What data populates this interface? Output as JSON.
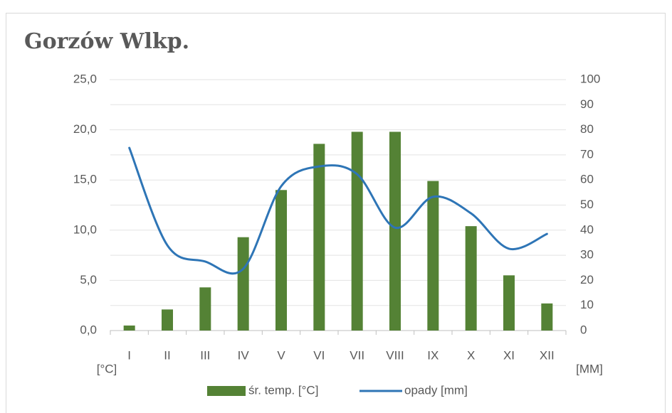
{
  "chart_data": {
    "type": "bar-line",
    "title": "Gorzów Wlkp.",
    "categories": [
      "I",
      "II",
      "III",
      "IV",
      "V",
      "VI",
      "VII",
      "VIII",
      "IX",
      "X",
      "XI",
      "XII"
    ],
    "series": [
      {
        "name": "śr. temp. [°C]",
        "color": "#548235",
        "type": "bar",
        "axis": "y",
        "values": [
          0.5,
          2.1,
          4.3,
          9.3,
          14.0,
          18.6,
          19.8,
          19.8,
          14.9,
          10.4,
          5.5,
          2.7
        ]
      },
      {
        "name": "opady [mm]",
        "color": "#2e75b6",
        "type": "line",
        "axis": "y2",
        "values": [
          72.8,
          34.0,
          27.5,
          24.6,
          57.5,
          65.4,
          62.3,
          41.0,
          53.3,
          46.7,
          32.6,
          38.5
        ]
      }
    ],
    "ylabel": "[°C]",
    "y2label": "[MM]",
    "ylim": [
      0,
      25
    ],
    "yticks": [
      {
        "value": 0,
        "label": "0,0"
      },
      {
        "value": 5,
        "label": "5,0"
      },
      {
        "value": 10,
        "label": "10,0"
      },
      {
        "value": 15,
        "label": "15,0"
      },
      {
        "value": 20,
        "label": "20,0"
      },
      {
        "value": 25,
        "label": "25,0"
      }
    ],
    "y2lim": [
      0,
      100
    ],
    "y2ticks": [
      0,
      10,
      20,
      30,
      40,
      50,
      60,
      70,
      80,
      90,
      100
    ],
    "grid": true,
    "legend": "bottom"
  }
}
